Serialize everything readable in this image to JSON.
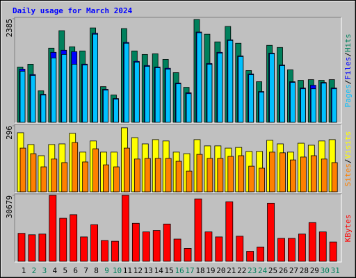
{
  "chart_data": [
    {
      "type": "bar",
      "title": "Daily usage for March 2024",
      "legend_separator": "/",
      "ylim": [
        0,
        2385
      ],
      "yticks": [
        2385
      ],
      "series": [
        {
          "name": "Hits",
          "color": "#00805c",
          "values": [
            1273,
            1338,
            725,
            1708,
            2111,
            1740,
            1644,
            2175,
            822,
            628,
            2159,
            1644,
            1563,
            1579,
            1450,
            1144,
            806,
            2369,
            2030,
            1853,
            2208,
            1821,
            1192,
            935,
            1773,
            1724,
            1209,
            967,
            983,
            967,
            983
          ]
        },
        {
          "name": "Files",
          "color": "#0000ff",
          "values": [
            1225,
            1100,
            645,
            1612,
            1660,
            1628,
            1340,
            2050,
            760,
            550,
            1840,
            1405,
            1308,
            1275,
            1245,
            905,
            680,
            2080,
            1355,
            1612,
            1900,
            1530,
            1115,
            710,
            1595,
            1322,
            935,
            790,
            854,
            918,
            790
          ]
        },
        {
          "name": "Pages",
          "color": "#00c0ff",
          "values": [
            1176,
            1080,
            628,
            1483,
            1563,
            1338,
            1321,
            2030,
            741,
            532,
            1821,
            1386,
            1289,
            1257,
            1225,
            886,
            661,
            2063,
            1338,
            1595,
            1885,
            1515,
            1096,
            693,
            1579,
            1305,
            919,
            773,
            773,
            902,
            773
          ]
        }
      ]
    },
    {
      "type": "bar",
      "legend_separator": "/",
      "ylim": [
        0,
        296
      ],
      "yticks": [
        296
      ],
      "series": [
        {
          "name": "Visits",
          "color": "#ffff00",
          "values": [
            265,
            212,
            162,
            212,
            215,
            262,
            178,
            228,
            178,
            178,
            287,
            243,
            215,
            234,
            228,
            178,
            171,
            234,
            206,
            206,
            196,
            199,
            181,
            181,
            231,
            215,
            178,
            218,
            209,
            228,
            234
          ]
        },
        {
          "name": "Sites",
          "color": "#ff8000",
          "values": [
            196,
            171,
            112,
            147,
            131,
            221,
            134,
            193,
            121,
            112,
            196,
            147,
            150,
            150,
            150,
            137,
            93,
            168,
            150,
            150,
            159,
            162,
            115,
            106,
            178,
            175,
            143,
            156,
            162,
            147,
            131
          ]
        }
      ]
    },
    {
      "type": "bar",
      "ylim": [
        0,
        30679
      ],
      "yticks": [
        30679
      ],
      "categories": [
        "1",
        "2",
        "3",
        "4",
        "5",
        "6",
        "7",
        "8",
        "9",
        "10",
        "11",
        "12",
        "13",
        "14",
        "15",
        "16",
        "17",
        "18",
        "19",
        "20",
        "21",
        "22",
        "23",
        "24",
        "25",
        "26",
        "27",
        "28",
        "29",
        "30",
        "31"
      ],
      "category_colors": [
        "#000000",
        "#00805c",
        "#00805c",
        "#000000",
        "#000000",
        "#000000",
        "#000000",
        "#000000",
        "#00805c",
        "#00805c",
        "#000000",
        "#000000",
        "#000000",
        "#000000",
        "#000000",
        "#00805c",
        "#00805c",
        "#000000",
        "#000000",
        "#000000",
        "#000000",
        "#000000",
        "#00805c",
        "#00805c",
        "#000000",
        "#000000",
        "#000000",
        "#000000",
        "#000000",
        "#00805c",
        "#00805c"
      ],
      "series": [
        {
          "name": "KBytes",
          "color": "#ff0000",
          "values": [
            13005,
            12338,
            12672,
            30679,
            20008,
            21676,
            11338,
            17007,
            9671,
            9337,
            30679,
            17674,
            13672,
            14339,
            17340,
            10338,
            6002,
            29012,
            13672,
            11338,
            27678,
            11671,
            4669,
            6669,
            27011,
            10671,
            10671,
            12672,
            18007,
            13672,
            9004
          ]
        }
      ]
    }
  ]
}
